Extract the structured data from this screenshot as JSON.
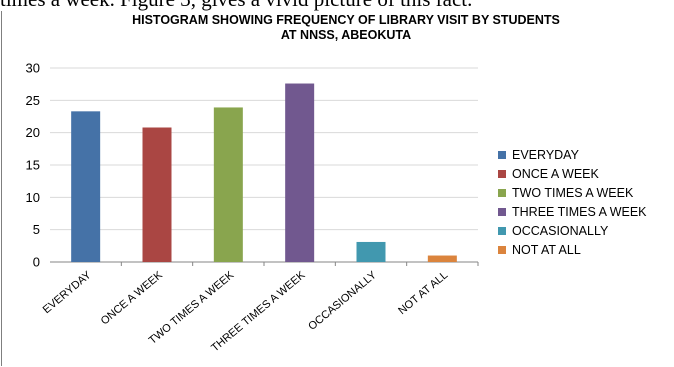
{
  "page": {
    "above_text": "times a week. Figure 3, gives a vivid picture of this fact."
  },
  "chart_data": {
    "type": "bar",
    "title_line1": "HISTOGRAM SHOWING FREQUENCY OF LIBRARY VISIT BY STUDENTS",
    "title_line2": "AT NNSS, ABEOKUTA",
    "categories": [
      "EVERYDAY",
      "ONCE A WEEK",
      "TWO TIMES A WEEK",
      "THREE TIMES A WEEK",
      "OCCASIONALLY",
      "NOT AT ALL"
    ],
    "values": [
      23.3,
      20.8,
      23.9,
      27.6,
      3.1,
      1.0
    ],
    "colors": [
      "#4572a7",
      "#aa4643",
      "#89a54e",
      "#71588f",
      "#4198af",
      "#db843d"
    ],
    "ylim": [
      0,
      30
    ],
    "yticks": [
      0,
      5,
      10,
      15,
      20,
      25,
      30
    ],
    "ytick_labels": [
      "0",
      "5",
      "10",
      "15",
      "20",
      "25",
      "30"
    ],
    "grid": true,
    "legend_position": "right",
    "legend": [
      "EVERYDAY",
      "ONCE A WEEK",
      "TWO TIMES A WEEK",
      "THREE TIMES A WEEK",
      "OCCASIONALLY",
      "NOT AT ALL"
    ]
  }
}
